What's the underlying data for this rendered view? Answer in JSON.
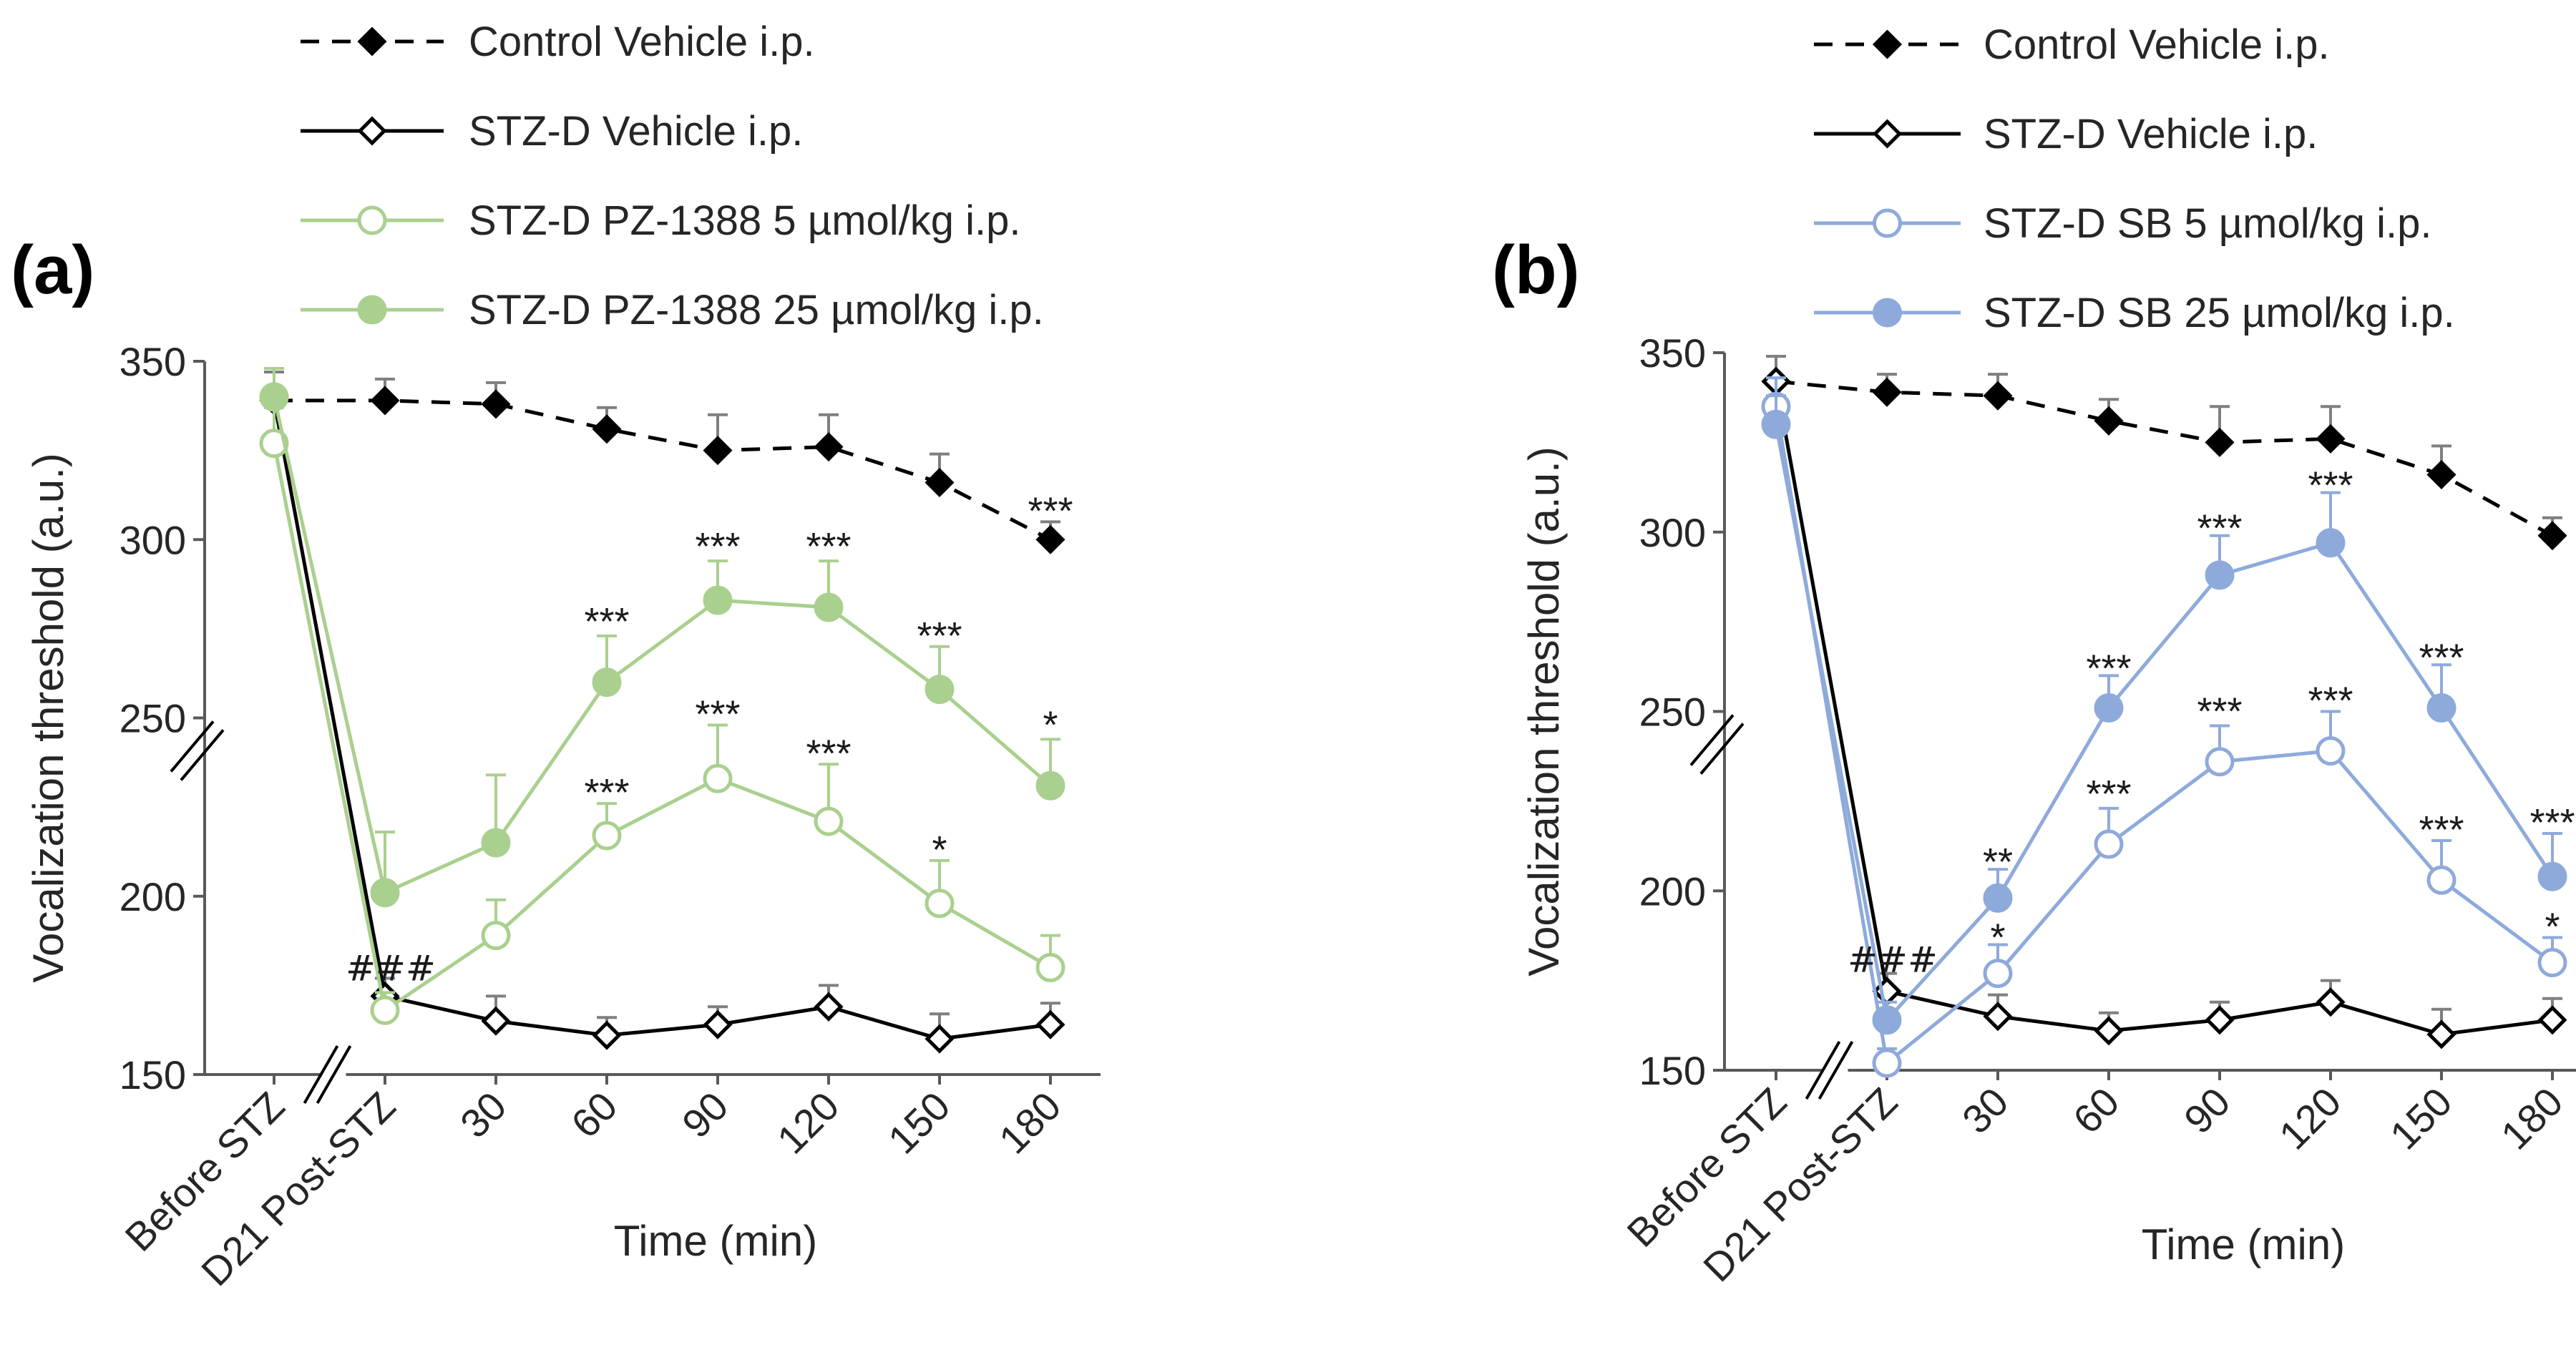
{
  "chart_data": [
    {
      "type": "line",
      "panel_label": "(a)",
      "ylabel": "Vocalization threshold (a.u.)",
      "xlabel": "Time (min)",
      "ylim": [
        150,
        350
      ],
      "yticks": [
        150,
        200,
        250,
        300,
        350
      ],
      "categories": [
        "Before STZ",
        "D21 Post-STZ",
        "30",
        "60",
        "90",
        "120",
        "150",
        "180"
      ],
      "axis_break": "between Before STZ and D21 Post-STZ",
      "series": [
        {
          "name": "Control Vehicle i.p.",
          "style": "dashed",
          "color": "#000000",
          "marker": "diamond-filled",
          "values": [
            339,
            339,
            338,
            331,
            325,
            326,
            316,
            300
          ],
          "errors": [
            8,
            6,
            6,
            6,
            10,
            9,
            8,
            5
          ]
        },
        {
          "name": "STZ-D Vehicle i.p.",
          "style": "solid",
          "color": "#000000",
          "marker": "diamond-open",
          "values": [
            339,
            172,
            165,
            161,
            164,
            169,
            160,
            164
          ],
          "errors": [
            8,
            5,
            7,
            5,
            5,
            6,
            7,
            6
          ]
        },
        {
          "name": "STZ-D PZ-1388 5 µmol/kg i.p.",
          "style": "solid",
          "color": "#a9d08e",
          "marker": "circle-open",
          "values": [
            327,
            168,
            189,
            217,
            233,
            221,
            198,
            180
          ],
          "errors": [
            10,
            5,
            10,
            9,
            15,
            16,
            12,
            9
          ]
        },
        {
          "name": "STZ-D PZ-1388 25 µmol/kg i.p.",
          "style": "solid",
          "color": "#a9d08e",
          "marker": "circle-filled",
          "values": [
            340,
            201,
            215,
            260,
            283,
            281,
            258,
            231
          ],
          "errors": [
            8,
            17,
            19,
            13,
            11,
            13,
            12,
            13
          ]
        }
      ],
      "annotations": [
        {
          "text": "###",
          "category": "D21 Post-STZ",
          "y": 180
        },
        {
          "text": "***",
          "category": "180",
          "y": 308
        },
        {
          "text": "***",
          "category": "60",
          "y": 277
        },
        {
          "text": "***",
          "category": "90",
          "y": 298
        },
        {
          "text": "***",
          "category": "120",
          "y": 298
        },
        {
          "text": "***",
          "category": "150",
          "y": 273
        },
        {
          "text": "*",
          "category": "180",
          "y": 248
        },
        {
          "text": "***",
          "category": "60",
          "y": 229
        },
        {
          "text": "***",
          "category": "90",
          "y": 251
        },
        {
          "text": "***",
          "category": "120",
          "y": 240
        },
        {
          "text": "*",
          "category": "150",
          "y": 213
        }
      ]
    },
    {
      "type": "line",
      "panel_label": "(b)",
      "ylabel": "Vocalization threshold (a.u.)",
      "xlabel": "Time (min)",
      "ylim": [
        150,
        350
      ],
      "yticks": [
        150,
        200,
        250,
        300,
        350
      ],
      "categories": [
        "Before STZ",
        "D21 Post-STZ",
        "30",
        "60",
        "90",
        "120",
        "150",
        "180"
      ],
      "axis_break": "between Before STZ and D21 Post-STZ",
      "series": [
        {
          "name": "Control Vehicle i.p.",
          "style": "dashed",
          "color": "#000000",
          "marker": "diamond-filled",
          "values": [
            342,
            339,
            338,
            331,
            325,
            326,
            316,
            299
          ],
          "errors": [
            7,
            5,
            6,
            6,
            10,
            9,
            8,
            5
          ]
        },
        {
          "name": "STZ-D Vehicle i.p.",
          "style": "solid",
          "color": "#000000",
          "marker": "diamond-open",
          "values": [
            342,
            172,
            165,
            161,
            164,
            169,
            160,
            164
          ],
          "errors": [
            7,
            5,
            6,
            5,
            5,
            6,
            7,
            6
          ]
        },
        {
          "name": "STZ-D SB 5 µmol/kg i.p.",
          "style": "solid",
          "color": "#8eaadb",
          "marker": "circle-open",
          "values": [
            335,
            152,
            177,
            213,
            236,
            239,
            203,
            180
          ],
          "errors": [
            8,
            4,
            8,
            10,
            10,
            11,
            11,
            7
          ]
        },
        {
          "name": "STZ-D SB 25 µmol/kg i.p.",
          "style": "solid",
          "color": "#8eaadb",
          "marker": "circle-filled",
          "values": [
            330,
            164,
            198,
            251,
            288,
            297,
            251,
            204
          ],
          "errors": [
            8,
            5,
            8,
            9,
            11,
            14,
            12,
            12
          ]
        }
      ],
      "annotations": [
        {
          "text": "###",
          "category": "D21 Post-STZ",
          "y": 181
        },
        {
          "text": "**",
          "category": "30",
          "y": 208
        },
        {
          "text": "*",
          "category": "30",
          "y": 187
        },
        {
          "text": "***",
          "category": "60",
          "y": 262
        },
        {
          "text": "***",
          "category": "60",
          "y": 227
        },
        {
          "text": "***",
          "category": "90",
          "y": 301
        },
        {
          "text": "***",
          "category": "90",
          "y": 250
        },
        {
          "text": "***",
          "category": "120",
          "y": 313
        },
        {
          "text": "***",
          "category": "120",
          "y": 253
        },
        {
          "text": "***",
          "category": "150",
          "y": 265
        },
        {
          "text": "***",
          "category": "150",
          "y": 217
        },
        {
          "text": "***",
          "category": "180",
          "y": 219
        },
        {
          "text": "*",
          "category": "180",
          "y": 190
        }
      ]
    }
  ]
}
